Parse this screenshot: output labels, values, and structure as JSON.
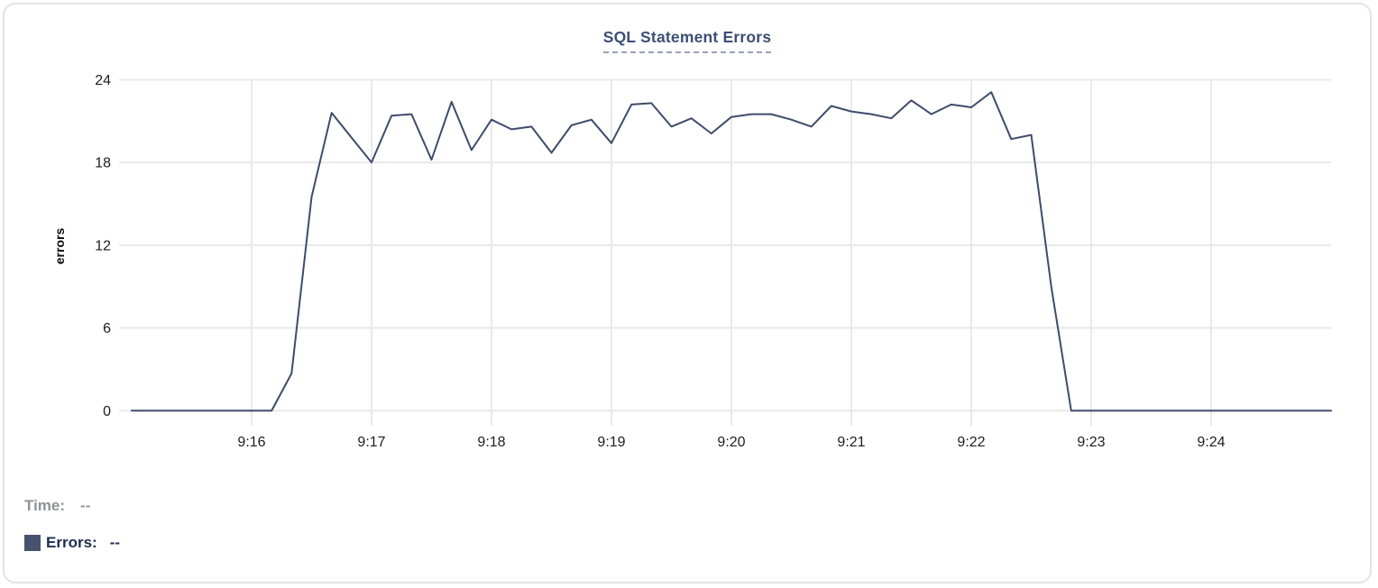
{
  "card": {
    "title": "SQL Statement Errors"
  },
  "readout": {
    "time_label": "Time:",
    "time_value": "--",
    "errors_label": "Errors:",
    "errors_value": "--"
  },
  "colors": {
    "line": "#3e4c6c",
    "legend_swatch": "#46536e",
    "grid": "#e9e9e9",
    "tick_text": "#1d1d1f",
    "title_text": "#3d4f74"
  },
  "chart_data": {
    "type": "line",
    "title": "SQL Statement Errors",
    "xlabel": "",
    "ylabel": "errors",
    "ylim": [
      0,
      24
    ],
    "y_tick_labels": [
      "0",
      "6",
      "12",
      "18",
      "24"
    ],
    "x_tick_labels": [
      "9:16",
      "9:17",
      "9:18",
      "9:19",
      "9:20",
      "9:21",
      "9:22",
      "9:23",
      "9:24"
    ],
    "x_range": [
      "9:15:00",
      "9:25:00"
    ],
    "x_interval_seconds": 10,
    "grid": true,
    "legend_position": "bottom-left",
    "series": [
      {
        "name": "Errors",
        "x": [
          "9:15:00",
          "9:15:10",
          "9:15:20",
          "9:15:30",
          "9:15:40",
          "9:15:50",
          "9:16:00",
          "9:16:10",
          "9:16:20",
          "9:16:30",
          "9:16:40",
          "9:16:50",
          "9:17:00",
          "9:17:10",
          "9:17:20",
          "9:17:30",
          "9:17:40",
          "9:17:50",
          "9:18:00",
          "9:18:10",
          "9:18:20",
          "9:18:30",
          "9:18:40",
          "9:18:50",
          "9:19:00",
          "9:19:10",
          "9:19:20",
          "9:19:30",
          "9:19:40",
          "9:19:50",
          "9:20:00",
          "9:20:10",
          "9:20:20",
          "9:20:30",
          "9:20:40",
          "9:20:50",
          "9:21:00",
          "9:21:10",
          "9:21:20",
          "9:21:30",
          "9:21:40",
          "9:21:50",
          "9:22:00",
          "9:22:10",
          "9:22:20",
          "9:22:30",
          "9:22:40",
          "9:22:50",
          "9:23:00",
          "9:23:10",
          "9:23:20",
          "9:23:30",
          "9:23:40",
          "9:23:50",
          "9:24:00",
          "9:24:10",
          "9:24:20",
          "9:24:30",
          "9:24:40",
          "9:24:50",
          "9:25:00"
        ],
        "values": [
          0,
          0,
          0,
          0,
          0,
          0,
          0,
          0,
          2.7,
          15.5,
          21.6,
          19.8,
          18,
          21.4,
          21.5,
          18.2,
          22.4,
          18.9,
          21.1,
          20.4,
          20.6,
          18.7,
          20.7,
          21.1,
          19.4,
          22.2,
          22.3,
          20.6,
          21.2,
          20.1,
          21.3,
          21.5,
          21.5,
          21.1,
          20.6,
          22.1,
          21.7,
          21.5,
          21.2,
          22.5,
          21.5,
          22.2,
          22,
          23.1,
          19.7,
          20,
          9,
          0,
          0,
          0,
          0,
          0,
          0,
          0,
          0,
          0,
          0,
          0,
          0,
          0,
          0
        ]
      }
    ]
  }
}
